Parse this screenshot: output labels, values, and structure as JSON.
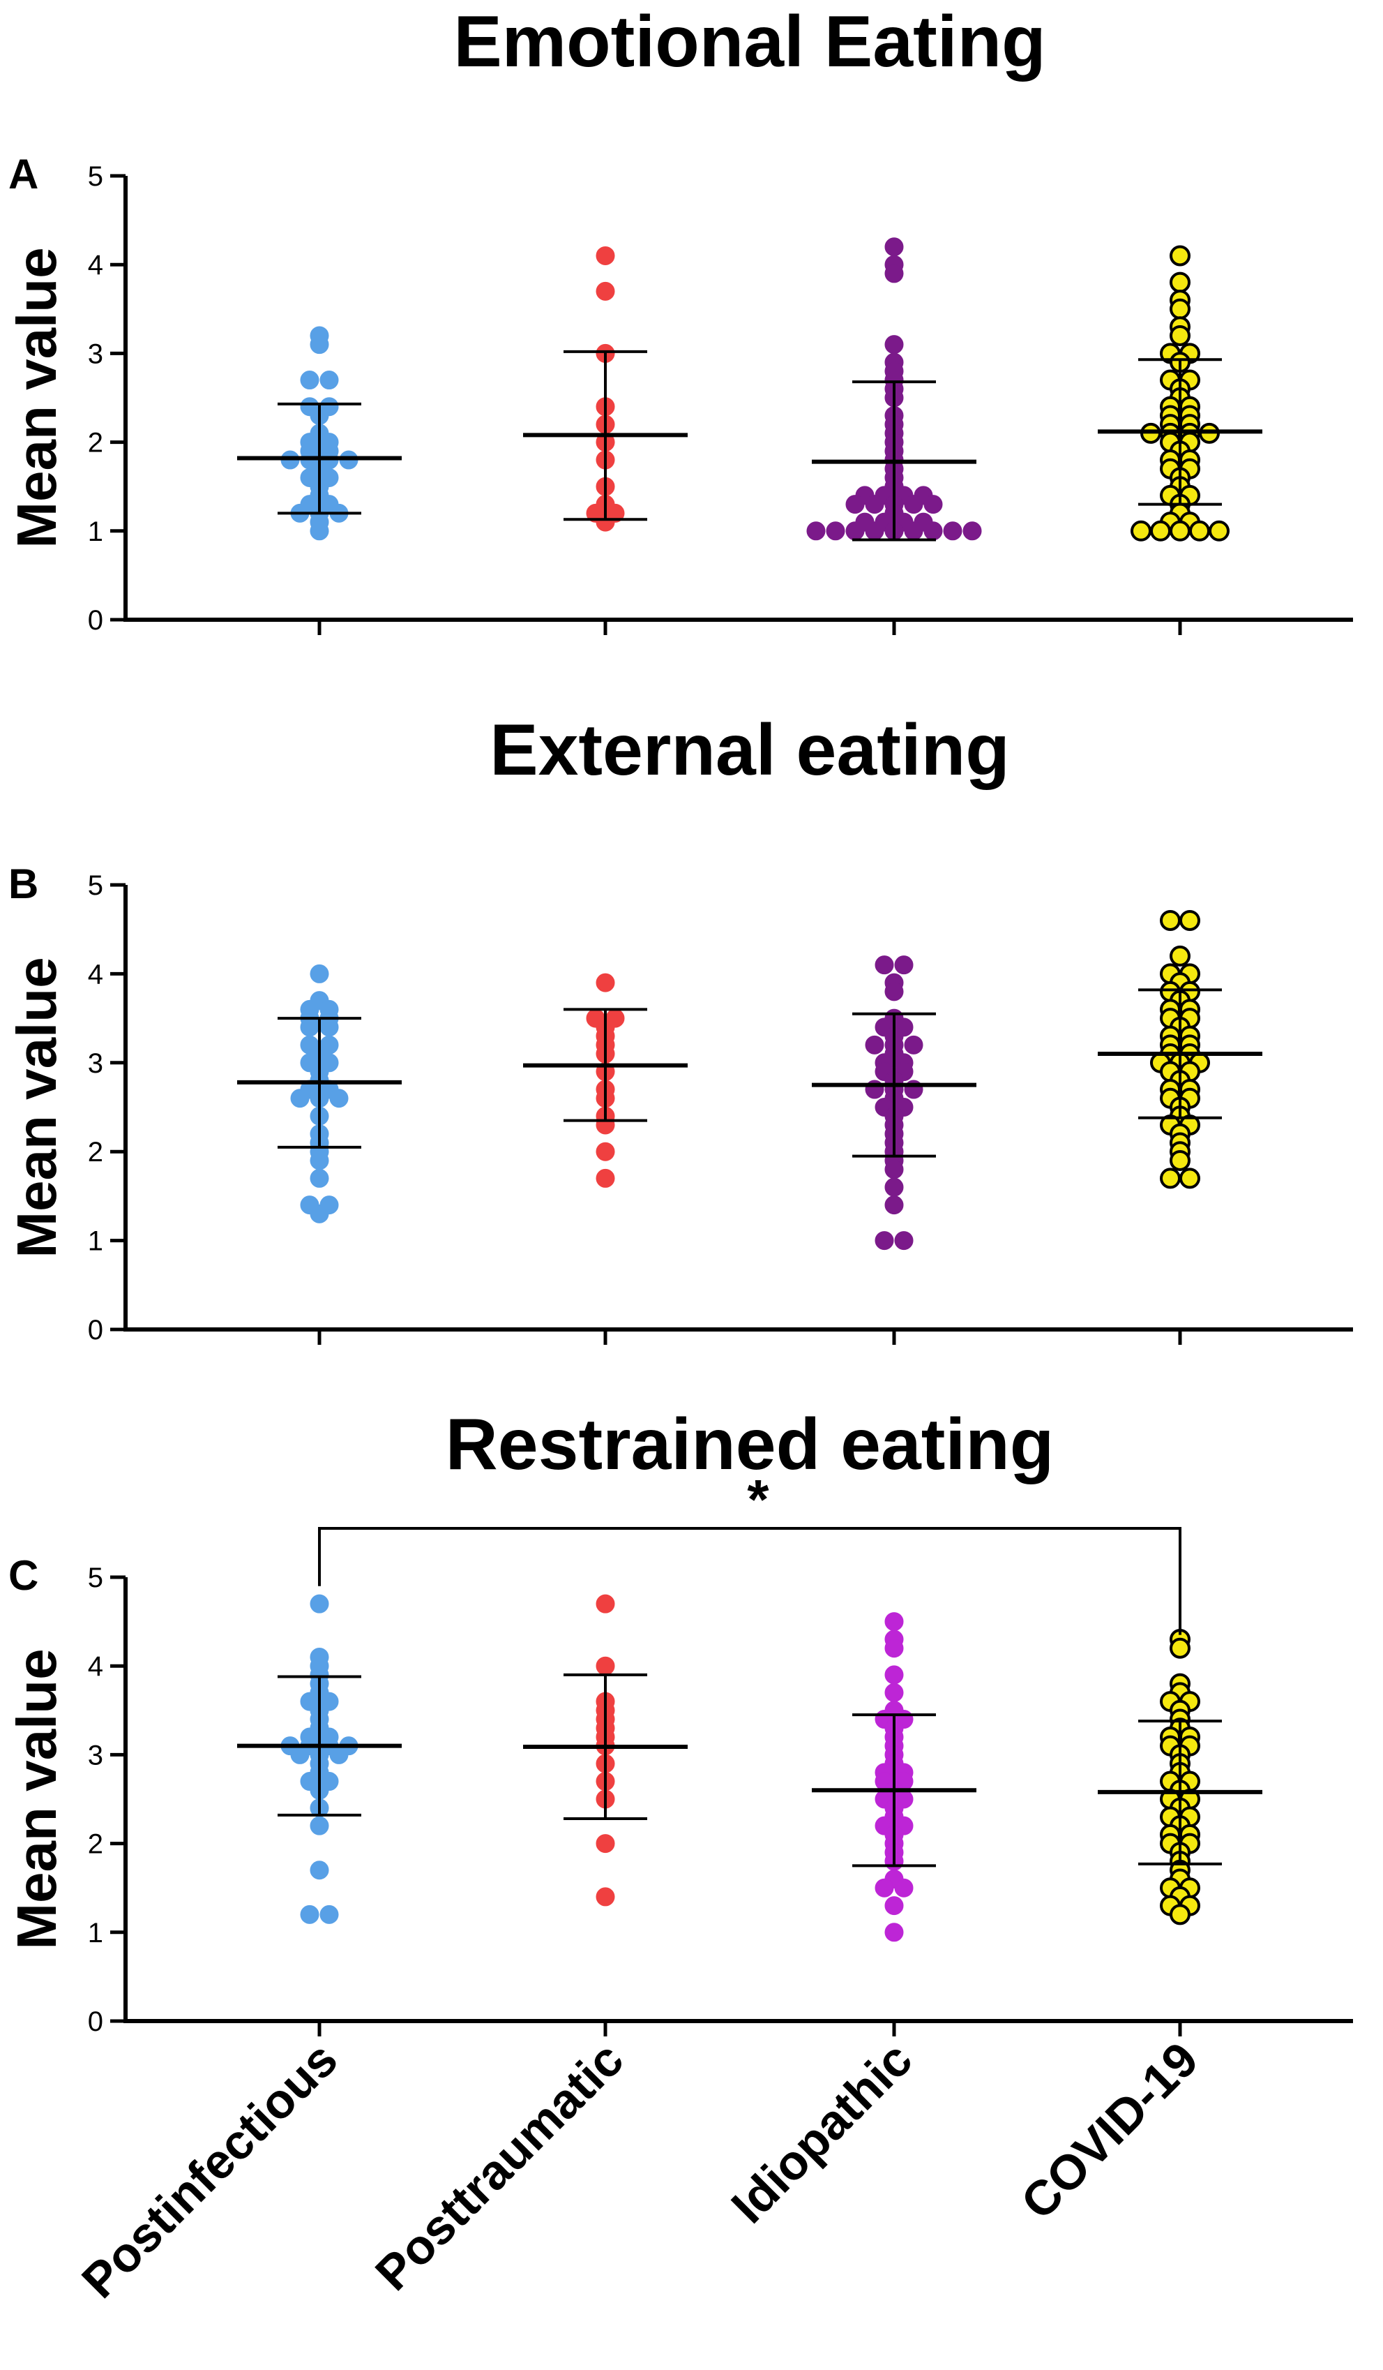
{
  "chart_data": [
    {
      "type": "scatter",
      "panel": "A",
      "title": "Emotional Eating",
      "ylabel": "Mean value",
      "ylim": [
        0,
        5
      ],
      "yticks": [
        "0",
        "1",
        "2",
        "3",
        "4",
        "5"
      ],
      "categories": [
        "Postinfectious",
        "Posttraumatic",
        "Idiopathic",
        "COVID-19"
      ],
      "groups": [
        {
          "name": "Postinfectious",
          "color": "#58A0E6",
          "edge": "#58A0E6",
          "points": [
            3.2,
            3.1,
            2.7,
            2.7,
            2.4,
            2.4,
            2.3,
            2.1,
            2.0,
            2.0,
            1.9,
            1.9,
            1.8,
            1.8,
            1.8,
            1.8,
            1.7,
            1.6,
            1.6,
            1.5,
            1.4,
            1.3,
            1.3,
            1.2,
            1.2,
            1.2,
            1.1,
            1.0
          ],
          "mean": 1.82,
          "sd_low": 1.2,
          "sd_high": 2.43
        },
        {
          "name": "Posttraumatic",
          "color": "#EF4040",
          "edge": "#EF4040",
          "points": [
            4.1,
            3.7,
            3.0,
            2.4,
            2.2,
            2.0,
            1.8,
            1.5,
            1.3,
            1.2,
            1.2,
            1.1
          ],
          "mean": 2.08,
          "sd_low": 1.13,
          "sd_high": 3.02
        },
        {
          "name": "Idiopathic",
          "color": "#7B1A8A",
          "edge": "#7B1A8A",
          "points": [
            4.2,
            4.0,
            3.9,
            3.1,
            2.9,
            2.8,
            2.7,
            2.6,
            2.5,
            2.3,
            2.2,
            2.1,
            2.0,
            1.9,
            1.8,
            1.7,
            1.6,
            1.5,
            1.4,
            1.4,
            1.4,
            1.4,
            1.3,
            1.3,
            1.3,
            1.3,
            1.3,
            1.2,
            1.1,
            1.1,
            1.1,
            1.1,
            1.0,
            1.0,
            1.0,
            1.0,
            1.0,
            1.0,
            1.0,
            1.0,
            1.0
          ],
          "mean": 1.78,
          "sd_low": 0.9,
          "sd_high": 2.68
        },
        {
          "name": "COVID-19",
          "color": "#F5E80F",
          "edge": "#000000",
          "points": [
            4.1,
            3.8,
            3.6,
            3.5,
            3.3,
            3.2,
            3.0,
            3.0,
            2.9,
            2.7,
            2.7,
            2.6,
            2.5,
            2.4,
            2.4,
            2.3,
            2.3,
            2.2,
            2.2,
            2.1,
            2.1,
            2.1,
            2.1,
            2.0,
            2.0,
            1.9,
            1.8,
            1.8,
            1.7,
            1.7,
            1.6,
            1.5,
            1.4,
            1.4,
            1.3,
            1.2,
            1.1,
            1.1,
            1.0,
            1.0,
            1.0,
            1.0,
            1.0
          ],
          "mean": 2.12,
          "sd_low": 1.3,
          "sd_high": 2.93
        }
      ],
      "significance": null
    },
    {
      "type": "scatter",
      "panel": "B",
      "title": "External eating",
      "ylabel": "Mean value",
      "ylim": [
        0,
        5
      ],
      "yticks": [
        "0",
        "1",
        "2",
        "3",
        "4",
        "5"
      ],
      "categories": [
        "Postinfectious",
        "Posttraumatic",
        "Idiopathic",
        "COVID-19"
      ],
      "groups": [
        {
          "name": "Postinfectious",
          "color": "#58A0E6",
          "edge": "#58A0E6",
          "points": [
            4.0,
            3.7,
            3.6,
            3.6,
            3.5,
            3.5,
            3.4,
            3.4,
            3.2,
            3.2,
            3.1,
            3.0,
            3.0,
            2.9,
            2.8,
            2.7,
            2.7,
            2.6,
            2.6,
            2.6,
            2.4,
            2.2,
            2.1,
            2.0,
            1.9,
            1.7,
            1.4,
            1.4,
            1.3
          ],
          "mean": 2.78,
          "sd_low": 2.05,
          "sd_high": 3.5
        },
        {
          "name": "Posttraumatic",
          "color": "#EF4040",
          "edge": "#EF4040",
          "points": [
            3.9,
            3.5,
            3.5,
            3.4,
            3.3,
            3.2,
            3.1,
            2.9,
            2.7,
            2.6,
            2.4,
            2.3,
            2.0,
            1.7
          ],
          "mean": 2.97,
          "sd_low": 2.35,
          "sd_high": 3.6
        },
        {
          "name": "Idiopathic",
          "color": "#7B1A8A",
          "edge": "#7B1A8A",
          "points": [
            4.1,
            4.1,
            3.9,
            3.8,
            3.5,
            3.4,
            3.4,
            3.3,
            3.2,
            3.2,
            3.2,
            3.1,
            3.0,
            3.0,
            2.9,
            2.9,
            2.8,
            2.7,
            2.7,
            2.7,
            2.6,
            2.5,
            2.5,
            2.4,
            2.3,
            2.2,
            2.1,
            2.0,
            1.9,
            1.8,
            1.6,
            1.4,
            1.0,
            1.0
          ],
          "mean": 2.75,
          "sd_low": 1.95,
          "sd_high": 3.55
        },
        {
          "name": "COVID-19",
          "color": "#F5E80F",
          "edge": "#000000",
          "points": [
            4.6,
            4.6,
            4.2,
            4.0,
            4.0,
            3.9,
            3.8,
            3.8,
            3.7,
            3.6,
            3.6,
            3.5,
            3.5,
            3.4,
            3.3,
            3.3,
            3.2,
            3.2,
            3.1,
            3.1,
            3.0,
            3.0,
            3.0,
            2.9,
            2.9,
            2.8,
            2.7,
            2.7,
            2.6,
            2.6,
            2.5,
            2.4,
            2.3,
            2.3,
            2.2,
            2.1,
            2.0,
            1.9,
            1.7,
            1.7
          ],
          "mean": 3.1,
          "sd_low": 2.38,
          "sd_high": 3.82
        }
      ],
      "significance": null
    },
    {
      "type": "scatter",
      "panel": "C",
      "title": "Restrained eating",
      "ylabel": "Mean value",
      "ylim": [
        0,
        5
      ],
      "yticks": [
        "0",
        "1",
        "2",
        "3",
        "4",
        "5"
      ],
      "categories": [
        "Postinfectious",
        "Posttraumatic",
        "Idiopathic",
        "COVID-19"
      ],
      "groups": [
        {
          "name": "Postinfectious",
          "color": "#58A0E6",
          "edge": "#58A0E6",
          "points": [
            4.7,
            4.1,
            4.0,
            3.9,
            3.8,
            3.7,
            3.6,
            3.6,
            3.5,
            3.4,
            3.3,
            3.2,
            3.2,
            3.1,
            3.1,
            3.1,
            3.1,
            3.0,
            3.0,
            3.0,
            2.9,
            2.8,
            2.7,
            2.7,
            2.6,
            2.4,
            2.2,
            1.7,
            1.2,
            1.2
          ],
          "mean": 3.1,
          "sd_low": 2.32,
          "sd_high": 3.88
        },
        {
          "name": "Posttraumatic",
          "color": "#EF4040",
          "edge": "#EF4040",
          "points": [
            4.7,
            4.0,
            3.6,
            3.5,
            3.4,
            3.3,
            3.2,
            3.1,
            2.9,
            2.7,
            2.5,
            2.0,
            1.4
          ],
          "mean": 3.09,
          "sd_low": 2.28,
          "sd_high": 3.9
        },
        {
          "name": "Idiopathic",
          "color": "#BD25D6",
          "edge": "#BD25D6",
          "points": [
            4.5,
            4.3,
            4.2,
            3.9,
            3.7,
            3.5,
            3.4,
            3.4,
            3.3,
            3.2,
            3.1,
            3.0,
            2.9,
            2.8,
            2.8,
            2.7,
            2.7,
            2.6,
            2.5,
            2.5,
            2.4,
            2.3,
            2.2,
            2.2,
            2.1,
            2.0,
            1.9,
            1.8,
            1.6,
            1.5,
            1.5,
            1.3,
            1.0
          ],
          "mean": 2.6,
          "sd_low": 1.75,
          "sd_high": 3.45
        },
        {
          "name": "COVID-19",
          "color": "#F5E80F",
          "edge": "#000000",
          "points": [
            4.3,
            4.2,
            3.8,
            3.7,
            3.6,
            3.6,
            3.5,
            3.4,
            3.3,
            3.2,
            3.2,
            3.1,
            3.1,
            3.0,
            2.9,
            2.8,
            2.7,
            2.7,
            2.6,
            2.5,
            2.5,
            2.4,
            2.3,
            2.3,
            2.2,
            2.1,
            2.1,
            2.0,
            2.0,
            1.9,
            1.8,
            1.7,
            1.6,
            1.5,
            1.5,
            1.4,
            1.3,
            1.3,
            1.2
          ],
          "mean": 2.58,
          "sd_low": 1.77,
          "sd_high": 3.38
        }
      ],
      "significance": {
        "from": "Postinfectious",
        "to": "COVID-19",
        "label": "*"
      }
    }
  ]
}
